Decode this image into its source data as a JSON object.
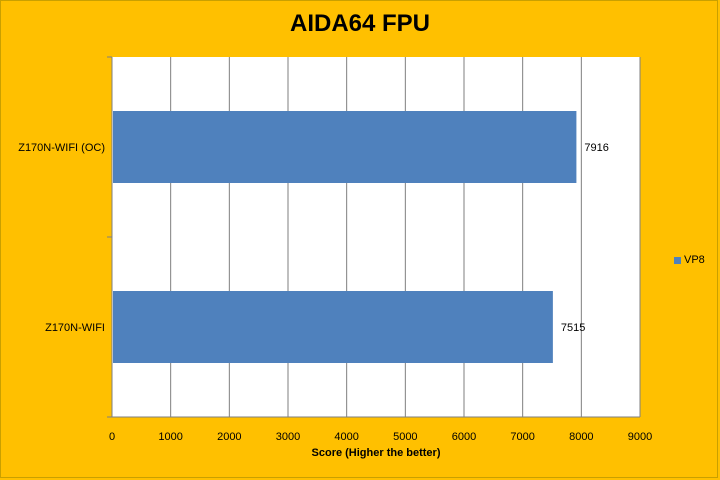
{
  "chart_data": {
    "type": "bar",
    "orientation": "horizontal",
    "title": "AIDA64 FPU",
    "xlabel": "Score (Higher the better)",
    "ylabel": "",
    "categories": [
      "Z170N-WIFI (OC)",
      "Z170N-WIFI"
    ],
    "series": [
      {
        "name": "VP8",
        "values": [
          7916,
          7515
        ]
      }
    ],
    "xlim": [
      0,
      9000
    ],
    "x_ticks": [
      0,
      1000,
      2000,
      3000,
      4000,
      5000,
      6000,
      7000,
      8000,
      9000
    ],
    "grid": true,
    "legend_position": "right",
    "colors": {
      "background": "#ffc000",
      "plot_area": "#ffffff",
      "bar": "#4f81bd",
      "grid": "#7f7f7f"
    }
  }
}
